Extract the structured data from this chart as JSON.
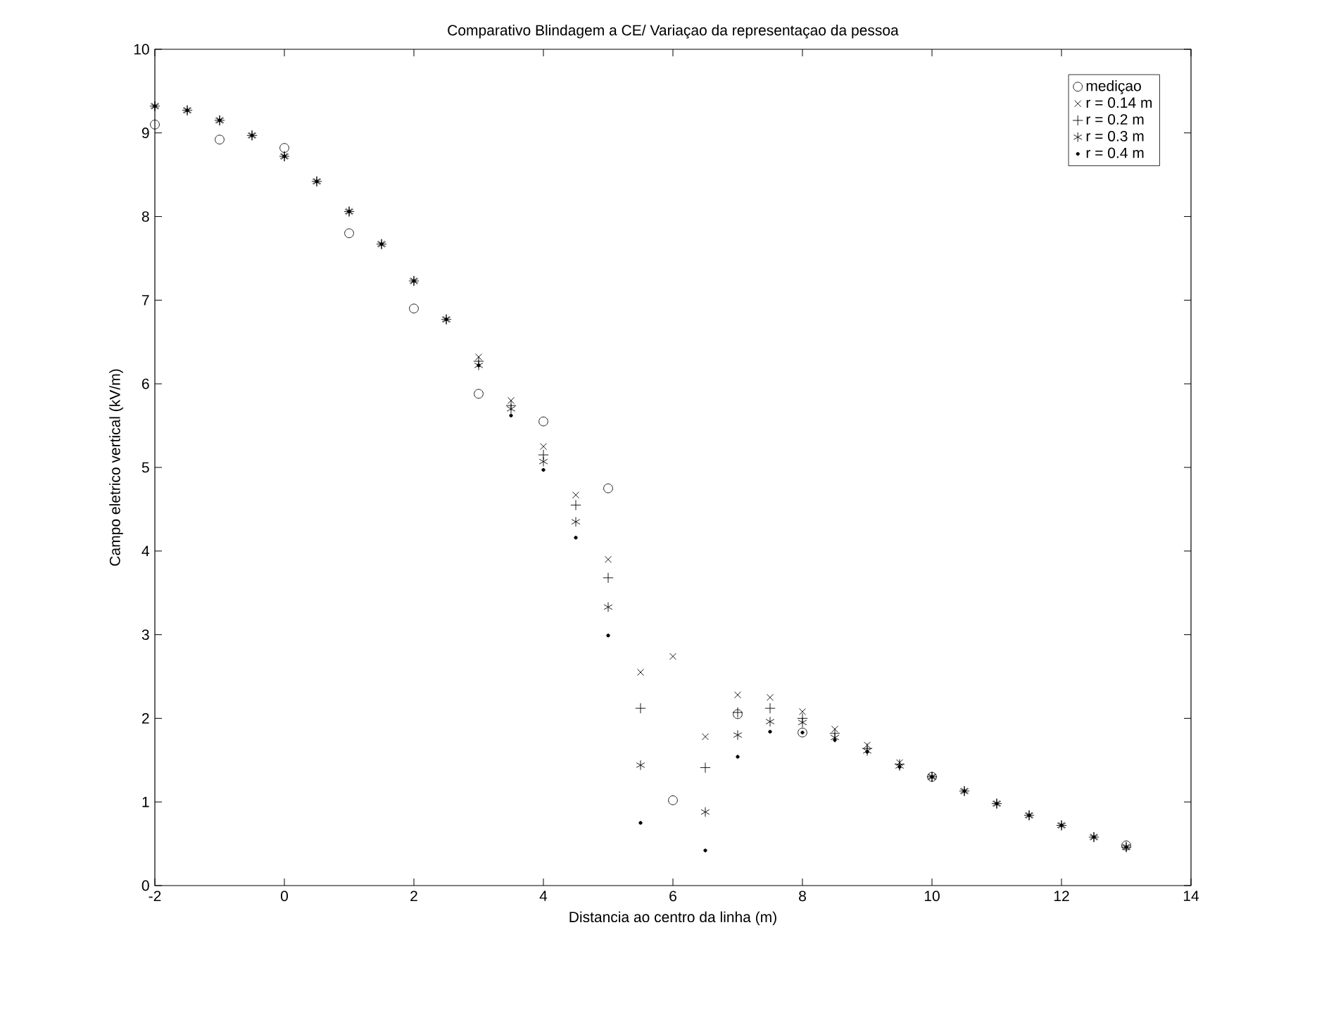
{
  "chart_data": {
    "type": "scatter",
    "title": "Comparativo Blindagem a CE/ Variaçao da representaçao da pessoa",
    "xlabel": "Distancia ao centro da linha (m)",
    "ylabel": "Campo eletrico vertical (kV/m)",
    "xlim": [
      -2,
      14
    ],
    "ylim": [
      0,
      10
    ],
    "xticks": [
      -2,
      0,
      2,
      4,
      6,
      8,
      10,
      12,
      14
    ],
    "yticks": [
      0,
      1,
      2,
      3,
      4,
      5,
      6,
      7,
      8,
      9,
      10
    ],
    "grid": false,
    "legend": "top right",
    "series": [
      {
        "name": "mediçao",
        "color": "#000000",
        "marker": "circle",
        "x": [
          -2,
          -1,
          0,
          1,
          2,
          3,
          4,
          5,
          6,
          7,
          8,
          10,
          13
        ],
        "values": [
          9.1,
          8.92,
          8.82,
          7.8,
          6.9,
          5.88,
          5.55,
          4.75,
          1.02,
          2.05,
          1.83,
          1.3,
          0.48
        ]
      },
      {
        "name": "r = 0.14 m",
        "color": "#000000",
        "marker": "cross",
        "x": [
          -2,
          -1.5,
          -1,
          -0.5,
          0,
          0.5,
          1,
          1.5,
          2,
          2.5,
          3,
          3.5,
          4,
          4.5,
          5,
          5.5,
          6,
          6.5,
          7,
          7.5,
          8,
          8.5,
          9,
          9.5,
          10,
          10.5,
          11,
          11.5,
          12,
          12.5,
          13
        ],
        "values": [
          9.32,
          9.27,
          9.15,
          8.97,
          8.72,
          8.42,
          8.06,
          7.67,
          7.23,
          6.77,
          6.32,
          5.8,
          5.25,
          4.67,
          3.9,
          2.55,
          2.74,
          1.78,
          2.28,
          2.25,
          2.08,
          1.87,
          1.68,
          1.47,
          1.3,
          1.13,
          0.98,
          0.84,
          0.72,
          0.58,
          0.46
        ]
      },
      {
        "name": "r = 0.2 m",
        "color": "#000000",
        "marker": "plus",
        "x": [
          -2,
          -1.5,
          -1,
          -0.5,
          0,
          0.5,
          1,
          1.5,
          2,
          2.5,
          3,
          3.5,
          4,
          4.5,
          5,
          5.5,
          6,
          6.5,
          7,
          7.5,
          8,
          8.5,
          9,
          9.5,
          10,
          10.5,
          11,
          11.5,
          12,
          12.5,
          13
        ],
        "values": [
          9.32,
          9.27,
          9.15,
          8.97,
          8.72,
          8.42,
          8.06,
          7.67,
          7.23,
          6.77,
          6.27,
          5.74,
          5.15,
          4.55,
          3.68,
          2.12,
          null,
          1.41,
          2.07,
          2.12,
          2.0,
          1.82,
          1.64,
          1.45,
          1.3,
          1.13,
          0.98,
          0.84,
          0.72,
          0.58,
          0.46
        ]
      },
      {
        "name": "r = 0.3 m",
        "color": "#000000",
        "x": [
          -2,
          -1.5,
          -1,
          -0.5,
          0,
          0.5,
          1,
          1.5,
          2,
          2.5,
          3,
          3.5,
          4,
          4.5,
          5,
          5.5,
          6,
          6.5,
          7,
          7.5,
          8,
          8.5,
          9,
          9.5,
          10,
          10.5,
          11,
          11.5,
          12,
          12.5,
          13
        ],
        "values": [
          9.32,
          9.27,
          9.15,
          8.97,
          8.72,
          8.42,
          8.06,
          7.67,
          7.23,
          6.77,
          6.22,
          5.7,
          5.07,
          4.35,
          3.33,
          1.44,
          null,
          0.88,
          1.8,
          1.96,
          1.95,
          1.77,
          1.61,
          1.43,
          1.3,
          1.13,
          0.98,
          0.84,
          0.72,
          0.58,
          0.46
        ]
      },
      {
        "name": "r = 0.4 m",
        "color": "#000000",
        "x": [
          -2,
          -1.5,
          -1,
          -0.5,
          0,
          0.5,
          1,
          1.5,
          2,
          2.5,
          3,
          3.5,
          4,
          4.5,
          5,
          5.5,
          6,
          6.5,
          7,
          7.5,
          8,
          8.5,
          9,
          9.5,
          10,
          10.5,
          11,
          11.5,
          12,
          12.5,
          13
        ],
        "values": [
          9.32,
          9.27,
          9.15,
          8.97,
          8.72,
          8.42,
          8.06,
          7.67,
          7.23,
          6.77,
          6.22,
          5.62,
          4.97,
          4.16,
          2.99,
          0.75,
          null,
          0.42,
          1.54,
          1.84,
          1.83,
          1.74,
          1.6,
          1.42,
          1.3,
          1.13,
          0.98,
          0.84,
          0.72,
          0.58,
          0.46
        ]
      }
    ]
  }
}
